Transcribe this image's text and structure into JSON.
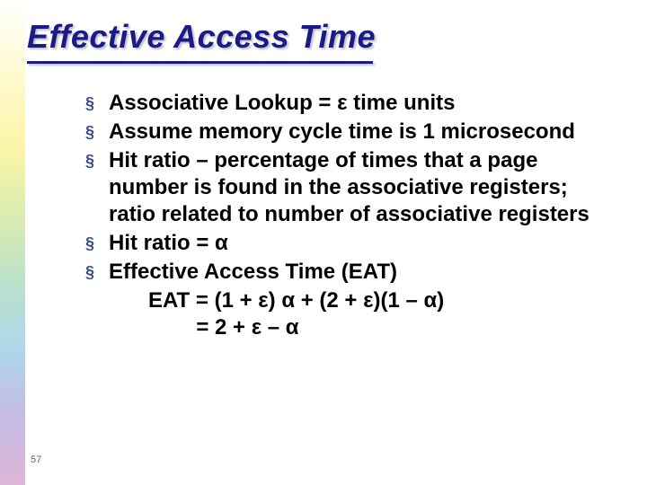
{
  "slide": {
    "title": "Effective Access Time",
    "page_number": "57",
    "title_color": "#1a1a8a",
    "text_color": "#000000",
    "bullet_color": "#3b4a8a",
    "bullets": [
      "Associative Lookup = ε time units",
      "Assume memory cycle time is 1 microsecond",
      "Hit ratio – percentage of times that a page number is found in the associative registers; ratio related to number of associative registers",
      "Hit ratio = α",
      "Effective Access Time (EAT)"
    ],
    "formula_lines": [
      "EAT = (1 + ε) α + (2 + ε)(1 – α)",
      "        = 2 + ε – α"
    ],
    "gradient_stops": [
      "#ffffff",
      "#fff9c9",
      "#fcf39a",
      "#d4e8a3",
      "#aeddc0",
      "#a0d0e8",
      "#b8b0e0",
      "#d8a8d0"
    ]
  }
}
